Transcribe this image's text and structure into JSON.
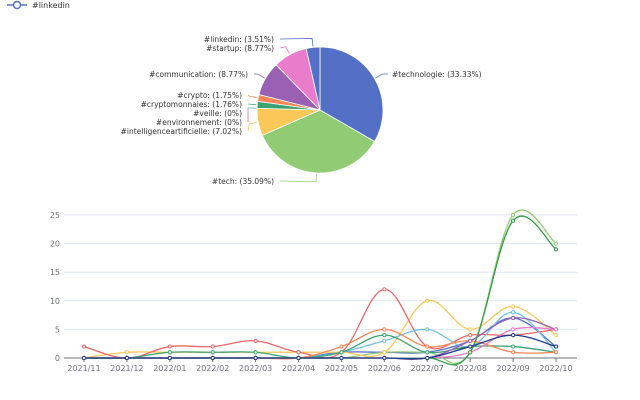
{
  "legend": {
    "label": "#linkedin",
    "color": "#5470c6"
  },
  "chart_data": [
    {
      "type": "pie",
      "slices": [
        {
          "label": "#technologie:",
          "pct": "(33.33%)",
          "value": 33.33,
          "color": "#5470c6"
        },
        {
          "label": "#tech:",
          "pct": "(35.09%)",
          "value": 35.09,
          "color": "#91cc75"
        },
        {
          "label": "#intelligenceartificielle:",
          "pct": "(7.02%)",
          "value": 7.02,
          "color": "#fac858"
        },
        {
          "label": "#environnement:",
          "pct": "(0%)",
          "value": 0,
          "color": "#ee6666"
        },
        {
          "label": "#veille:",
          "pct": "(0%)",
          "value": 0,
          "color": "#73c0de"
        },
        {
          "label": "#cryptomonnaies:",
          "pct": "(1.76%)",
          "value": 1.76,
          "color": "#3ba272"
        },
        {
          "label": "#crypto:",
          "pct": "(1.75%)",
          "value": 1.75,
          "color": "#fc8452"
        },
        {
          "label": "#communication:",
          "pct": "(8.77%)",
          "value": 8.77,
          "color": "#9a60b4"
        },
        {
          "label": "#startup:",
          "pct": "(8.77%)",
          "value": 8.77,
          "color": "#ea7ccc"
        },
        {
          "label": "#linkedin:",
          "pct": "(3.51%)",
          "value": 3.51,
          "color": "#5470c6"
        }
      ]
    },
    {
      "type": "line",
      "categories": [
        "2021/11",
        "2021/12",
        "2022/01",
        "2022/02",
        "2022/03",
        "2022/04",
        "2022/05",
        "2022/06",
        "2022/07",
        "2022/08",
        "2022/09",
        "2022/10"
      ],
      "y_ticks": [
        "0",
        "5",
        "10",
        "15",
        "20",
        "25"
      ],
      "ylim": [
        0,
        25
      ],
      "grid": true,
      "series": [
        {
          "color": "#5470c6",
          "values": [
            0,
            0,
            0,
            0,
            0,
            0,
            1,
            1,
            1,
            3,
            7,
            2
          ]
        },
        {
          "color": "#91cc75",
          "values": [
            0,
            0,
            0,
            0,
            0,
            0,
            0,
            1,
            1,
            1,
            25,
            20
          ]
        },
        {
          "color": "#fac858",
          "values": [
            0,
            1,
            1,
            1,
            1,
            1,
            1,
            1,
            10,
            5,
            9,
            4
          ]
        },
        {
          "color": "#ee6666",
          "values": [
            2,
            0,
            2,
            2,
            3,
            1,
            1,
            12,
            2,
            4,
            4,
            5
          ]
        },
        {
          "color": "#73c0de",
          "values": [
            0,
            0,
            0,
            0,
            0,
            0,
            1,
            3,
            5,
            2,
            8,
            1
          ]
        },
        {
          "color": "#3ba272",
          "values": [
            0,
            0,
            1,
            1,
            1,
            0,
            1,
            4,
            1,
            2,
            2,
            1
          ]
        },
        {
          "color": "#fc8452",
          "values": [
            0,
            0,
            0,
            0,
            0,
            0,
            2,
            5,
            2,
            3,
            1,
            1
          ]
        },
        {
          "color": "#9a60b4",
          "values": [
            0,
            0,
            0,
            0,
            0,
            0,
            0,
            0,
            0,
            3,
            7,
            5
          ]
        },
        {
          "color": "#ea7ccc",
          "values": [
            0,
            0,
            0,
            0,
            0,
            0,
            0,
            0,
            0,
            1,
            5,
            5
          ]
        },
        {
          "color": "#2f9e44",
          "values": [
            0,
            0,
            0,
            0,
            0,
            0,
            0,
            0,
            0,
            1,
            24,
            19
          ]
        },
        {
          "color": "#1f3b8c",
          "values": [
            0,
            0,
            0,
            0,
            0,
            0,
            0,
            0,
            0,
            2,
            4,
            2
          ]
        }
      ]
    }
  ]
}
